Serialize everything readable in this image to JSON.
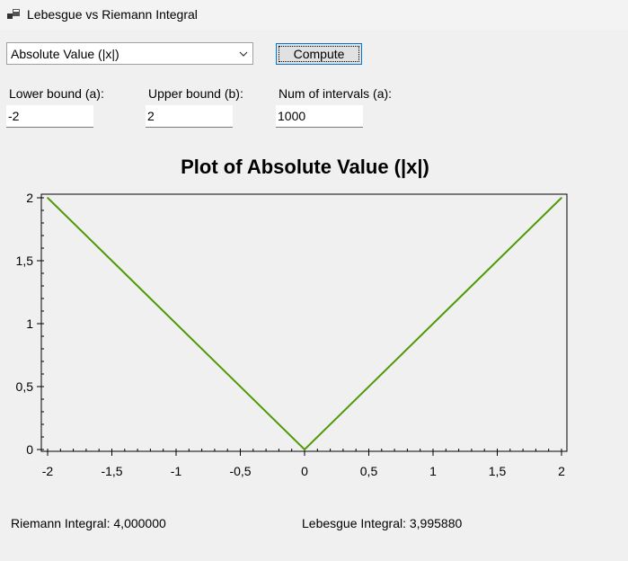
{
  "window": {
    "title": "Lebesgue vs Riemann Integral"
  },
  "controls": {
    "function_select": {
      "value": "Absolute Value (|x|)"
    },
    "compute_button": "Compute",
    "lower_bound": {
      "label": "Lower bound (a):",
      "value": "-2"
    },
    "upper_bound": {
      "label": "Upper bound (b):",
      "value": "2"
    },
    "num_intervals": {
      "label": "Num of intervals (a):",
      "value": "1000"
    }
  },
  "chart_data": {
    "type": "line",
    "title": "Plot of Absolute Value (|x|)",
    "xlabel": "",
    "ylabel": "",
    "xlim": [
      -2,
      2
    ],
    "ylim": [
      0,
      2
    ],
    "x_ticks": [
      "-2",
      "-1,5",
      "-1",
      "-0,5",
      "0",
      "0,5",
      "1",
      "1,5",
      "2"
    ],
    "y_ticks": [
      "0",
      "0,5",
      "1",
      "1,5",
      "2"
    ],
    "grid": false,
    "series": [
      {
        "color": "#4e9a06",
        "x": [
          -2,
          0,
          2
        ],
        "y": [
          2,
          0,
          2
        ]
      }
    ]
  },
  "results": {
    "riemann": "Riemann Integral: 4,000000",
    "lebesgue": "Lebesgue Integral: 3,995880"
  }
}
